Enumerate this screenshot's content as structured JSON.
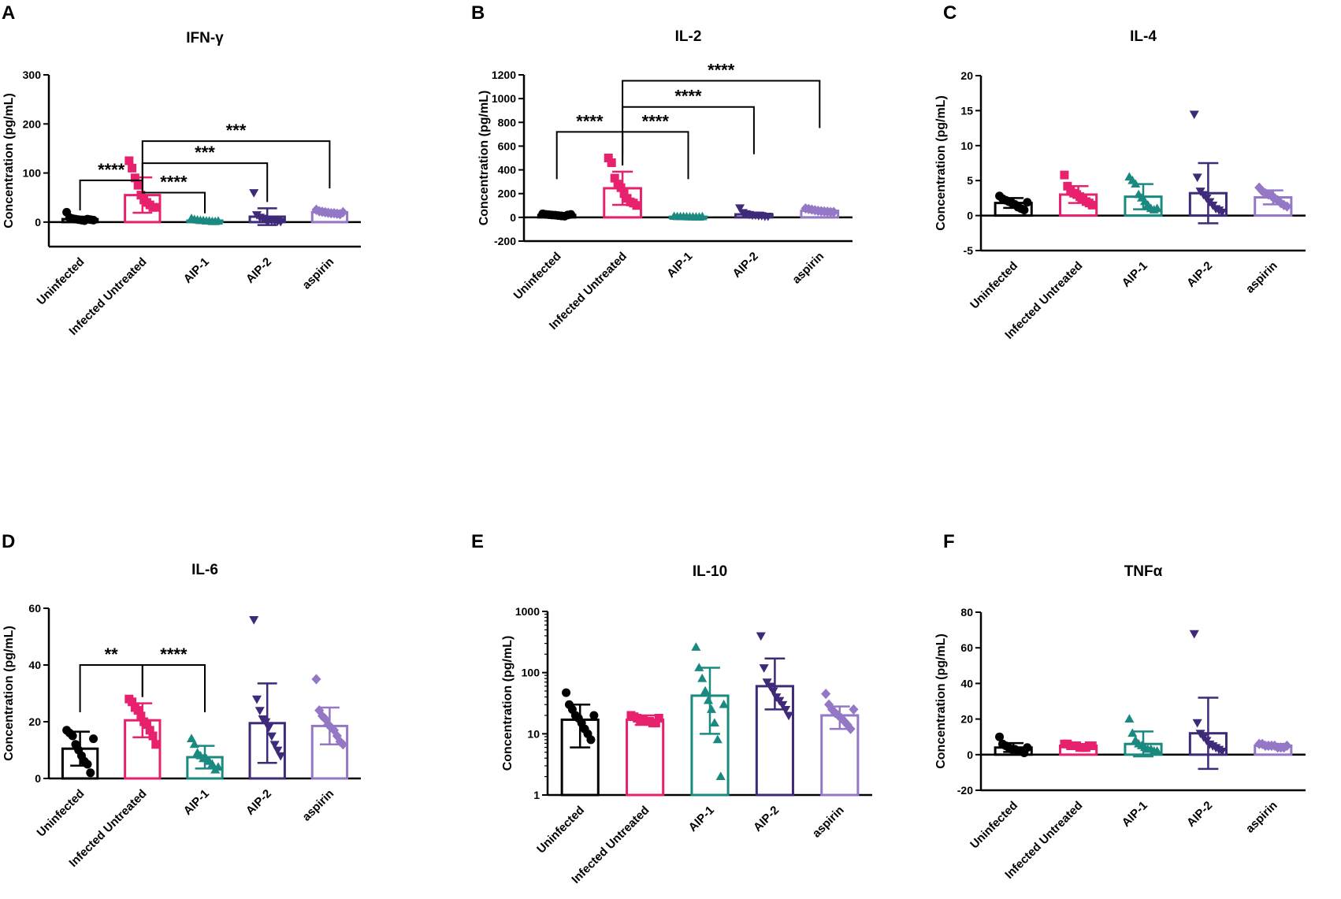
{
  "colors": {
    "Uninfected": "#000000",
    "Infected Untreated": "#e8216e",
    "AIP-1": "#1a8a80",
    "AIP-2": "#3e2a78",
    "aspirin": "#9478c6"
  },
  "marker_shapes": {
    "Uninfected": "circle",
    "Infected Untreated": "square",
    "AIP-1": "triangle-up",
    "AIP-2": "triangle-down",
    "aspirin": "diamond"
  },
  "chart_data": [
    {
      "letter": "A",
      "type": "bar",
      "title": "IFN-γ",
      "ylabel": "Concentration (pg/mL)",
      "scale": "linear",
      "ylim": [
        -50,
        300
      ],
      "yticks": [
        0,
        100,
        200,
        300
      ],
      "zero_line": true,
      "categories": [
        "Uninfected",
        "Infected Untreated",
        "AIP-1",
        "AIP-2",
        "aspirin"
      ],
      "means": [
        6,
        55,
        3,
        11,
        20
      ],
      "sd": [
        5,
        36,
        2,
        17,
        3
      ],
      "points": [
        [
          20,
          9,
          7,
          6,
          5,
          4,
          3,
          6,
          5,
          4
        ],
        [
          125,
          110,
          90,
          75,
          55,
          45,
          40,
          35,
          30,
          30
        ],
        [
          7,
          5,
          4,
          3,
          3,
          2,
          2,
          1,
          1,
          2
        ],
        [
          60,
          15,
          10,
          8,
          6,
          5,
          4,
          3,
          2,
          1
        ],
        [
          25,
          22,
          21,
          20,
          19,
          18,
          18,
          17,
          16,
          20
        ]
      ],
      "sig": [
        {
          "from": 0,
          "to": 1,
          "label": "****",
          "y": 85
        },
        {
          "from": 1,
          "to": 2,
          "label": "****",
          "y": 60
        },
        {
          "from": 1,
          "to": 3,
          "label": "***",
          "y": 120
        },
        {
          "from": 1,
          "to": 4,
          "label": "***",
          "y": 165
        }
      ]
    },
    {
      "letter": "B",
      "type": "bar",
      "title": "IL-2",
      "ylabel": "Concentration (pg/mL)",
      "scale": "linear",
      "ylim": [
        -200,
        1200
      ],
      "yticks": [
        -200,
        0,
        200,
        400,
        600,
        800,
        1000,
        1200
      ],
      "zero_line": true,
      "categories": [
        "Uninfected",
        "Infected Untreated",
        "AIP-1",
        "AIP-2",
        "aspirin"
      ],
      "means": [
        20,
        245,
        5,
        25,
        55
      ],
      "sd": [
        8,
        140,
        3,
        15,
        10
      ],
      "points": [
        [
          30,
          25,
          22,
          20,
          18,
          15,
          12,
          10,
          20,
          25
        ],
        [
          500,
          460,
          330,
          280,
          250,
          200,
          160,
          130,
          120,
          100
        ],
        [
          8,
          6,
          5,
          5,
          4,
          3,
          3,
          2,
          2,
          5
        ],
        [
          80,
          40,
          30,
          25,
          20,
          20,
          15,
          15,
          10,
          10
        ],
        [
          75,
          70,
          65,
          60,
          55,
          52,
          50,
          48,
          45,
          45
        ]
      ],
      "sig": [
        {
          "from": 0,
          "to": 1,
          "label": "****",
          "y": 720
        },
        {
          "from": 1,
          "to": 2,
          "label": "****",
          "y": 720
        },
        {
          "from": 1,
          "to": 3,
          "label": "****",
          "y": 930
        },
        {
          "from": 1,
          "to": 4,
          "label": "****",
          "y": 1150
        }
      ]
    },
    {
      "letter": "C",
      "type": "bar",
      "title": "IL-4",
      "ylabel": "Concentration (pg/mL)",
      "scale": "linear",
      "ylim": [
        -5,
        20
      ],
      "yticks": [
        -5,
        0,
        5,
        10,
        15,
        20
      ],
      "zero_line": true,
      "categories": [
        "Uninfected",
        "Infected Untreated",
        "AIP-1",
        "AIP-2",
        "aspirin"
      ],
      "means": [
        1.8,
        3.0,
        2.7,
        3.2,
        2.6
      ],
      "sd": [
        0.7,
        1.2,
        1.8,
        4.3,
        1.0
      ],
      "points": [
        [
          2.8,
          2.4,
          2.2,
          2.0,
          1.8,
          1.6,
          1.2,
          1.0,
          0.8,
          1.9
        ],
        [
          5.8,
          4.2,
          3.5,
          3.2,
          3.0,
          2.7,
          2.5,
          2.0,
          1.8,
          1.5
        ],
        [
          5.5,
          5.0,
          4.5,
          3.0,
          2.5,
          2.0,
          1.5,
          1.0,
          0.8,
          1.0
        ],
        [
          14.5,
          5.5,
          3.5,
          3.0,
          2.5,
          2.0,
          1.5,
          1.0,
          0.8,
          0.5
        ],
        [
          4.0,
          3.5,
          3.2,
          3.0,
          2.8,
          2.5,
          2.2,
          1.8,
          1.5,
          1.3
        ]
      ],
      "sig": []
    },
    {
      "letter": "D",
      "type": "bar",
      "title": "IL-6",
      "ylabel": "Concentration (pg/mL)",
      "scale": "linear",
      "ylim": [
        0,
        60
      ],
      "yticks": [
        0,
        20,
        40,
        60
      ],
      "zero_line": false,
      "categories": [
        "Uninfected",
        "Infected Untreated",
        "AIP-1",
        "AIP-2",
        "aspirin"
      ],
      "means": [
        10.5,
        20.5,
        7.5,
        19.5,
        18.5
      ],
      "sd": [
        6,
        6,
        4,
        14,
        6.5
      ],
      "points": [
        [
          17,
          16,
          15,
          12,
          10,
          8,
          6,
          5,
          2,
          14
        ],
        [
          28,
          27,
          25,
          24,
          22,
          20,
          19,
          17,
          15,
          12
        ],
        [
          14,
          12,
          9,
          8,
          7,
          7,
          6,
          5,
          3,
          4
        ],
        [
          56,
          28,
          24,
          21,
          20,
          18,
          15,
          12,
          10,
          8
        ],
        [
          35,
          24,
          22,
          21,
          19,
          18,
          17,
          15,
          13,
          12
        ]
      ],
      "sig": [
        {
          "from": 0,
          "to": 1,
          "label": "**",
          "y": 40
        },
        {
          "from": 1,
          "to": 2,
          "label": "****",
          "y": 40
        }
      ]
    },
    {
      "letter": "E",
      "type": "bar",
      "title": "IL-10",
      "ylabel": "Concentration (pg/mL)",
      "scale": "log",
      "ylim": [
        1,
        1000
      ],
      "yticks": [
        1,
        10,
        100,
        1000
      ],
      "zero_line": false,
      "categories": [
        "Uninfected",
        "Infected Untreated",
        "AIP-1",
        "AIP-2",
        "aspirin"
      ],
      "means": [
        17,
        17,
        42,
        60,
        20
      ],
      "sd_low": [
        6,
        14,
        10,
        25,
        12
      ],
      "sd_high": [
        30,
        20,
        120,
        170,
        28
      ],
      "points": [
        [
          47,
          30,
          25,
          20,
          18,
          15,
          12,
          10,
          8,
          20
        ],
        [
          20,
          19,
          18,
          17,
          17,
          16,
          16,
          15,
          15,
          18
        ],
        [
          260,
          120,
          80,
          50,
          35,
          25,
          15,
          8,
          2,
          30
        ],
        [
          400,
          120,
          70,
          60,
          50,
          40,
          35,
          30,
          25,
          20
        ],
        [
          45,
          30,
          25,
          22,
          20,
          18,
          16,
          14,
          12,
          25
        ]
      ],
      "sig": []
    },
    {
      "letter": "F",
      "type": "bar",
      "title": "TNFα",
      "ylabel": "Concentration (pg/mL)",
      "scale": "linear",
      "ylim": [
        -20,
        80
      ],
      "yticks": [
        -20,
        0,
        20,
        40,
        60,
        80
      ],
      "zero_line": true,
      "categories": [
        "Uninfected",
        "Infected Untreated",
        "AIP-1",
        "AIP-2",
        "aspirin"
      ],
      "means": [
        4,
        5,
        6,
        12,
        5
      ],
      "sd": [
        2.5,
        1,
        7,
        20,
        1
      ],
      "points": [
        [
          10,
          6,
          5,
          4,
          3,
          3,
          2,
          2,
          1,
          4
        ],
        [
          6,
          6,
          5,
          5,
          5,
          4,
          4,
          4,
          5,
          5
        ],
        [
          20,
          12,
          8,
          6,
          5,
          4,
          3,
          3,
          2,
          2
        ],
        [
          68,
          18,
          12,
          10,
          8,
          6,
          5,
          4,
          3,
          2
        ],
        [
          6,
          6,
          5,
          5,
          5,
          5,
          4,
          4,
          4,
          5
        ]
      ],
      "sig": []
    }
  ]
}
